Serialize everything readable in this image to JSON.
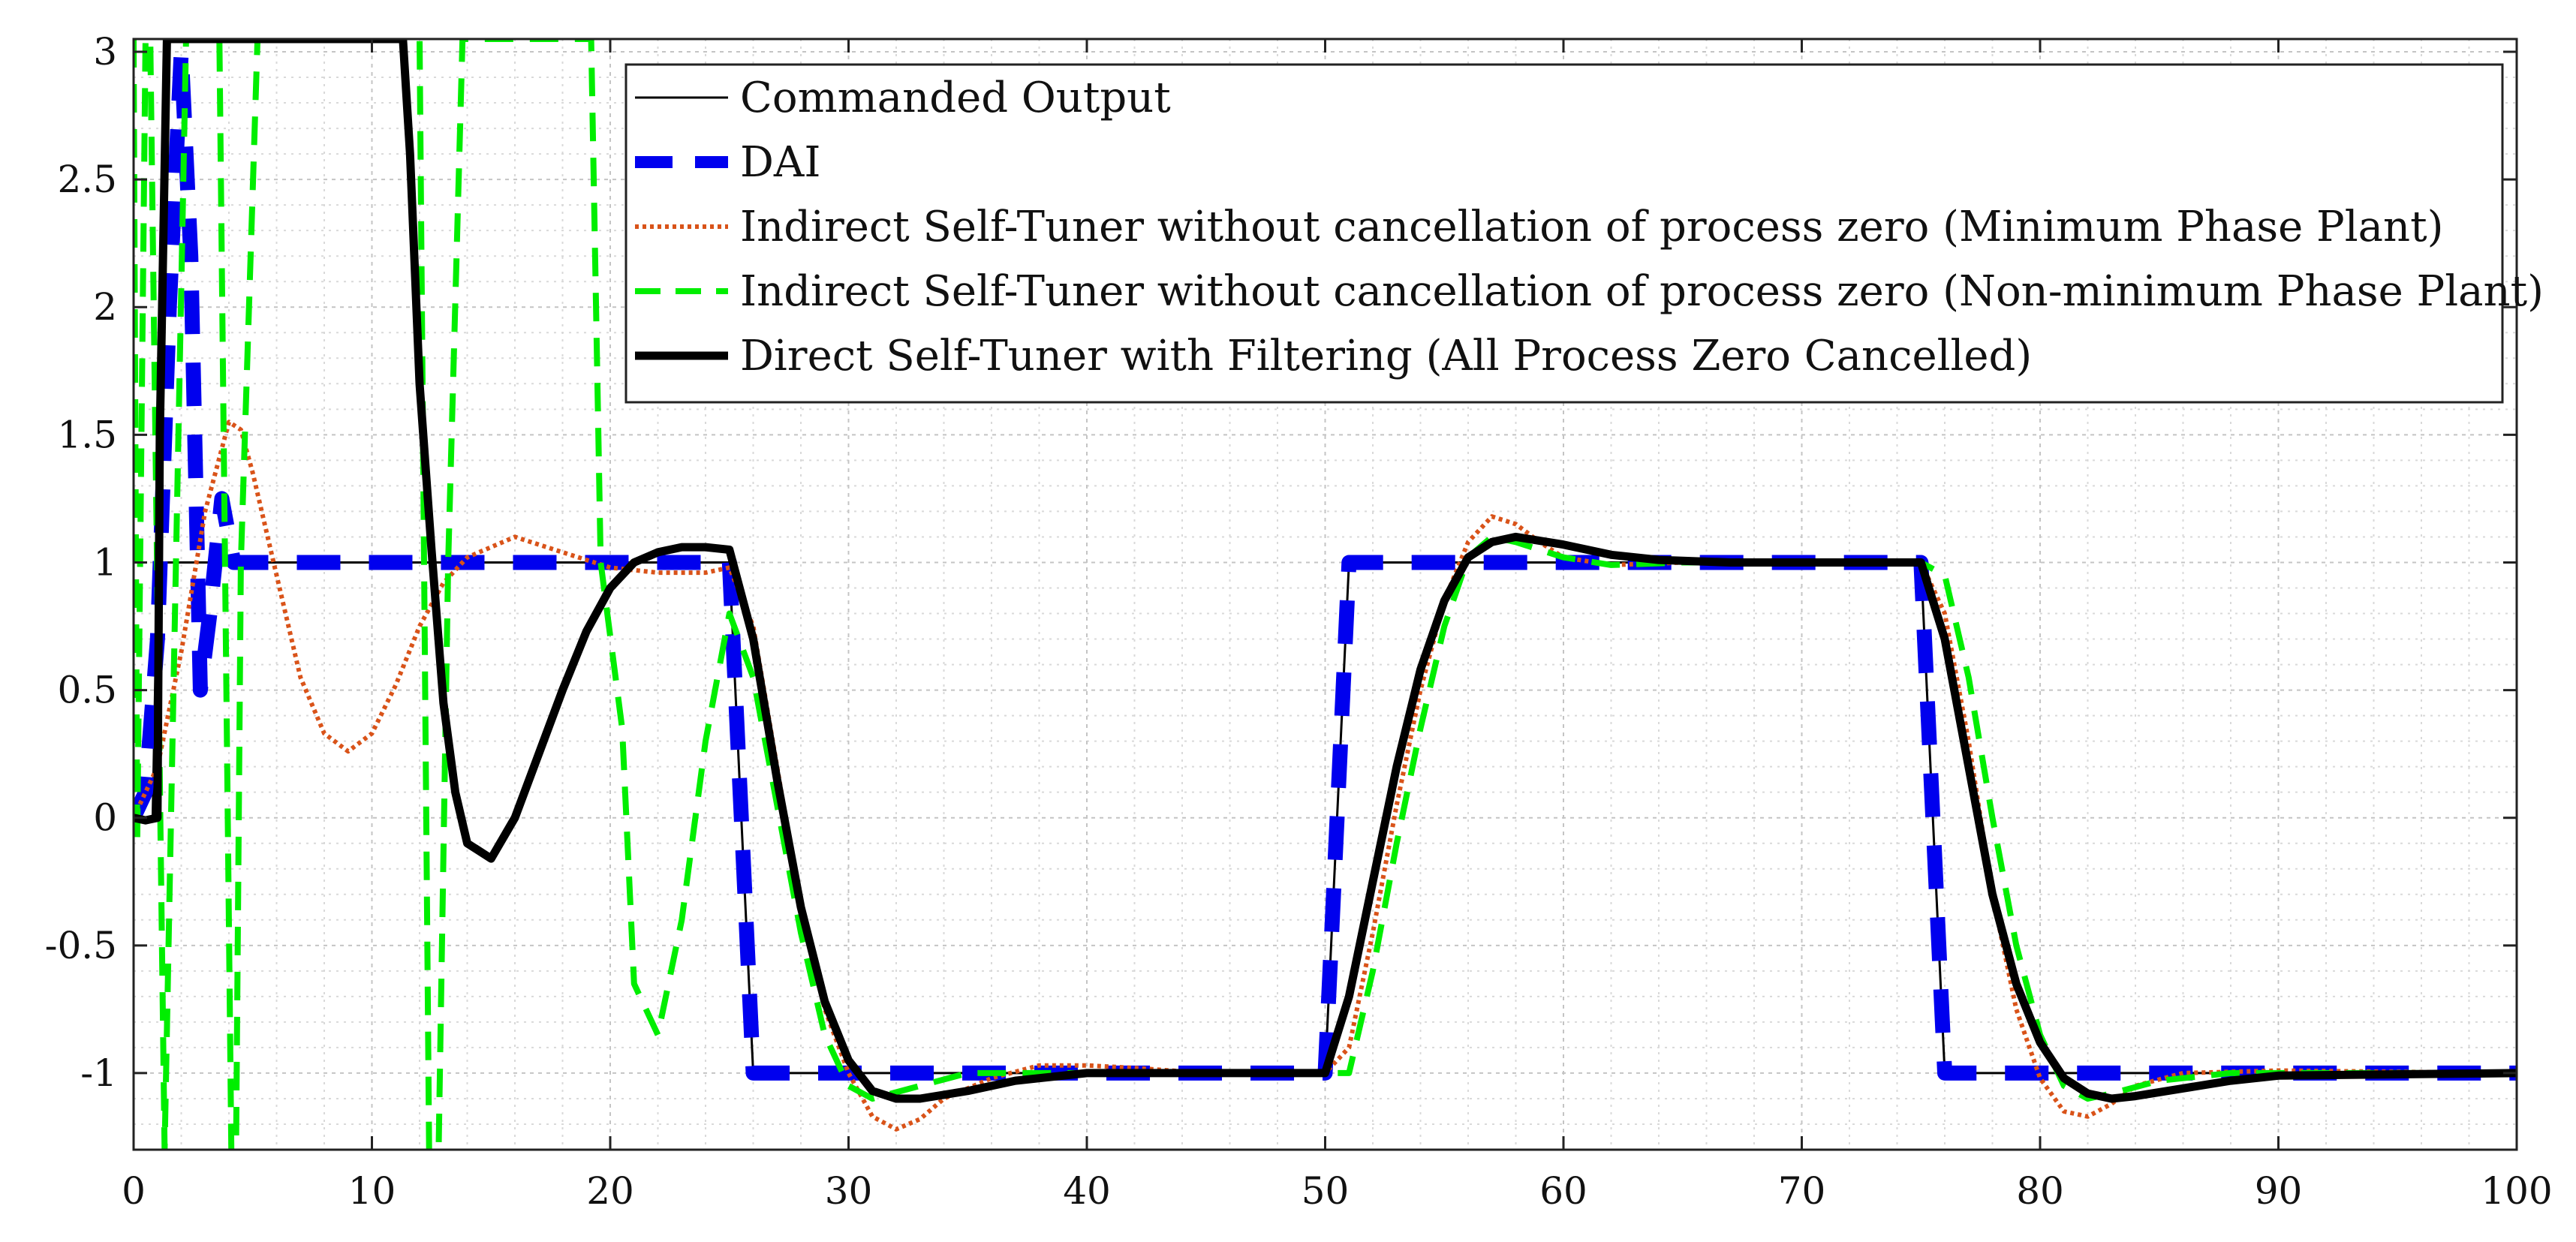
{
  "chart_data": {
    "type": "line",
    "title": "",
    "xlabel": "",
    "ylabel": "",
    "xlim": [
      0,
      100
    ],
    "ylim": [
      -1.3,
      3.05
    ],
    "grid": true,
    "minor_grid": true,
    "legend_position": "top-right",
    "x_ticks": [
      0,
      10,
      20,
      30,
      40,
      50,
      60,
      70,
      80,
      90,
      100
    ],
    "x_tick_labels": [
      "0",
      "10",
      "20",
      "30",
      "40",
      "50",
      "60",
      "70",
      "80",
      "90",
      "100"
    ],
    "y_ticks": [
      -1,
      -0.5,
      0,
      0.5,
      1,
      1.5,
      2,
      2.5,
      3
    ],
    "y_tick_labels": [
      "-1",
      "-0.5",
      "0",
      "0.5",
      "1",
      "1.5",
      "2",
      "2.5",
      "3"
    ],
    "series": [
      {
        "name": "Commanded Output",
        "color": "#000000",
        "style": "solid-thin",
        "points": [
          [
            0,
            0
          ],
          [
            0.8,
            0
          ],
          [
            1,
            1
          ],
          [
            25,
            1
          ],
          [
            26,
            -1
          ],
          [
            50,
            -1
          ],
          [
            51,
            1
          ],
          [
            75,
            1
          ],
          [
            76,
            -1
          ],
          [
            100,
            -1
          ]
        ]
      },
      {
        "name": "DAI",
        "color": "#0000ee",
        "style": "dashed-thick",
        "points": [
          [
            0,
            0
          ],
          [
            0.5,
            0.1
          ],
          [
            1,
            0.7
          ],
          [
            1.5,
            2.0
          ],
          [
            2,
            3.0
          ],
          [
            2.4,
            2.2
          ],
          [
            2.8,
            0.5
          ],
          [
            3.2,
            0.8
          ],
          [
            3.7,
            1.25
          ],
          [
            4.2,
            1.0
          ],
          [
            5,
            1
          ],
          [
            25,
            1
          ],
          [
            26,
            -1
          ],
          [
            50,
            -1
          ],
          [
            51,
            1
          ],
          [
            75,
            1
          ],
          [
            76,
            -1
          ],
          [
            100,
            -1
          ]
        ]
      },
      {
        "name": "Indirect Self-Tuner without cancellation of process zero (Minimum Phase Plant)",
        "color": "#d95319",
        "style": "dotted",
        "points": [
          [
            0,
            0
          ],
          [
            1,
            0.2
          ],
          [
            2,
            0.65
          ],
          [
            3,
            1.2
          ],
          [
            4,
            1.55
          ],
          [
            4.5,
            1.52
          ],
          [
            5,
            1.35
          ],
          [
            6,
            0.95
          ],
          [
            7,
            0.55
          ],
          [
            8,
            0.33
          ],
          [
            9,
            0.26
          ],
          [
            10,
            0.33
          ],
          [
            11,
            0.52
          ],
          [
            12,
            0.75
          ],
          [
            13,
            0.92
          ],
          [
            14,
            1.02
          ],
          [
            16,
            1.1
          ],
          [
            18,
            1.04
          ],
          [
            20,
            0.98
          ],
          [
            22,
            0.96
          ],
          [
            24,
            0.96
          ],
          [
            25,
            0.98
          ],
          [
            26,
            0.75
          ],
          [
            27,
            0.2
          ],
          [
            28,
            -0.35
          ],
          [
            29,
            -0.75
          ],
          [
            30,
            -1.0
          ],
          [
            31,
            -1.17
          ],
          [
            32,
            -1.22
          ],
          [
            33,
            -1.18
          ],
          [
            34,
            -1.1
          ],
          [
            36,
            -1.02
          ],
          [
            38,
            -0.97
          ],
          [
            40,
            -0.97
          ],
          [
            42,
            -0.98
          ],
          [
            45,
            -1.0
          ],
          [
            50,
            -1.0
          ],
          [
            51,
            -0.9
          ],
          [
            52,
            -0.45
          ],
          [
            53,
            0.05
          ],
          [
            54,
            0.5
          ],
          [
            55,
            0.85
          ],
          [
            56,
            1.08
          ],
          [
            57,
            1.18
          ],
          [
            58,
            1.15
          ],
          [
            59,
            1.08
          ],
          [
            60,
            1.02
          ],
          [
            62,
            0.99
          ],
          [
            65,
            1.0
          ],
          [
            75,
            1.0
          ],
          [
            76,
            0.8
          ],
          [
            77,
            0.3
          ],
          [
            78,
            -0.3
          ],
          [
            79,
            -0.75
          ],
          [
            80,
            -1.02
          ],
          [
            81,
            -1.15
          ],
          [
            82,
            -1.17
          ],
          [
            83,
            -1.12
          ],
          [
            84,
            -1.05
          ],
          [
            86,
            -1.0
          ],
          [
            90,
            -0.99
          ],
          [
            100,
            -1.0
          ]
        ]
      },
      {
        "name": "Indirect Self-Tuner without cancellation of process zero (Non-minimum Phase Plant)",
        "color": "#00ee00",
        "style": "dashed",
        "points": [
          [
            0,
            3.05
          ],
          [
            0.15,
            -0.1
          ],
          [
            0.5,
            3.05
          ],
          [
            0.7,
            3.05
          ],
          [
            1.3,
            -1.3
          ],
          [
            2.2,
            3.05
          ],
          [
            3.6,
            3.05
          ],
          [
            4.1,
            -1.3
          ],
          [
            4.3,
            -1.3
          ],
          [
            4.5,
            1.0
          ],
          [
            5.2,
            3.05
          ],
          [
            12,
            3.05
          ],
          [
            12.4,
            -1.3
          ],
          [
            12.8,
            -1.3
          ],
          [
            13.2,
            1.0
          ],
          [
            13.8,
            3.05
          ],
          [
            19.2,
            3.05
          ],
          [
            19.6,
            1.0
          ],
          [
            20.5,
            0.35
          ],
          [
            21,
            -0.65
          ],
          [
            22,
            -0.85
          ],
          [
            23,
            -0.4
          ],
          [
            24,
            0.3
          ],
          [
            25,
            0.8
          ],
          [
            26,
            0.55
          ],
          [
            27,
            0.05
          ],
          [
            28,
            -0.45
          ],
          [
            29,
            -0.85
          ],
          [
            30,
            -1.05
          ],
          [
            31,
            -1.1
          ],
          [
            33,
            -1.05
          ],
          [
            35,
            -1.0
          ],
          [
            40,
            -1.0
          ],
          [
            50,
            -1.0
          ],
          [
            51,
            -1.0
          ],
          [
            52,
            -0.6
          ],
          [
            53,
            -0.1
          ],
          [
            54,
            0.35
          ],
          [
            55,
            0.75
          ],
          [
            56,
            1.02
          ],
          [
            57,
            1.1
          ],
          [
            58,
            1.08
          ],
          [
            60,
            1.02
          ],
          [
            62,
            0.99
          ],
          [
            65,
            1.0
          ],
          [
            75,
            1.0
          ],
          [
            76,
            0.95
          ],
          [
            77,
            0.55
          ],
          [
            78,
            0.0
          ],
          [
            79,
            -0.5
          ],
          [
            80,
            -0.85
          ],
          [
            81,
            -1.05
          ],
          [
            82,
            -1.1
          ],
          [
            83,
            -1.08
          ],
          [
            85,
            -1.03
          ],
          [
            88,
            -1.0
          ],
          [
            100,
            -1.0
          ]
        ]
      },
      {
        "name": "Direct Self-Tuner with Filtering (All Process Zero Cancelled)",
        "color": "#000000",
        "style": "solid-thick",
        "points": [
          [
            0,
            0
          ],
          [
            0.5,
            -0.01
          ],
          [
            1,
            0.0
          ],
          [
            1.1,
            1.5
          ],
          [
            1.4,
            3.05
          ],
          [
            11.3,
            3.05
          ],
          [
            11.6,
            2.6
          ],
          [
            12,
            1.7
          ],
          [
            12.5,
            1.05
          ],
          [
            13,
            0.45
          ],
          [
            13.5,
            0.1
          ],
          [
            14,
            -0.1
          ],
          [
            15,
            -0.16
          ],
          [
            16,
            0.0
          ],
          [
            17,
            0.25
          ],
          [
            18,
            0.5
          ],
          [
            19,
            0.73
          ],
          [
            20,
            0.9
          ],
          [
            21,
            1.0
          ],
          [
            22,
            1.04
          ],
          [
            23,
            1.06
          ],
          [
            24,
            1.06
          ],
          [
            25,
            1.05
          ],
          [
            26,
            0.7
          ],
          [
            27,
            0.15
          ],
          [
            28,
            -0.35
          ],
          [
            29,
            -0.72
          ],
          [
            30,
            -0.95
          ],
          [
            31,
            -1.07
          ],
          [
            32,
            -1.1
          ],
          [
            33,
            -1.1
          ],
          [
            35,
            -1.07
          ],
          [
            37,
            -1.03
          ],
          [
            40,
            -1.0
          ],
          [
            50,
            -1.0
          ],
          [
            51,
            -0.7
          ],
          [
            52,
            -0.25
          ],
          [
            53,
            0.2
          ],
          [
            54,
            0.58
          ],
          [
            55,
            0.85
          ],
          [
            56,
            1.02
          ],
          [
            57,
            1.08
          ],
          [
            58,
            1.1
          ],
          [
            60,
            1.07
          ],
          [
            62,
            1.03
          ],
          [
            64,
            1.01
          ],
          [
            67,
            1.0
          ],
          [
            75,
            1.0
          ],
          [
            76,
            0.7
          ],
          [
            77,
            0.2
          ],
          [
            78,
            -0.3
          ],
          [
            79,
            -0.65
          ],
          [
            80,
            -0.88
          ],
          [
            81,
            -1.02
          ],
          [
            82,
            -1.08
          ],
          [
            83,
            -1.1
          ],
          [
            84,
            -1.09
          ],
          [
            86,
            -1.06
          ],
          [
            88,
            -1.03
          ],
          [
            90,
            -1.01
          ],
          [
            100,
            -1.0
          ]
        ]
      }
    ]
  }
}
